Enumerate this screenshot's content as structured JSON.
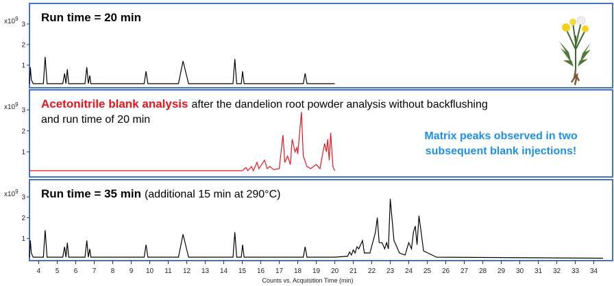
{
  "chart_data": [
    {
      "type": "line",
      "title": "Run time = 20 min",
      "title_color": "#000000",
      "color": "#000000",
      "y_multiplier": "x10",
      "y_exponent": "9",
      "xlim": [
        3.5,
        34.5
      ],
      "ylim": [
        0,
        3.3
      ],
      "yticks": [
        1,
        2,
        3
      ],
      "x": [
        3.5,
        3.55,
        3.6,
        3.7,
        4.25,
        4.35,
        4.45,
        5.3,
        5.4,
        5.47,
        5.55,
        5.62,
        5.7,
        6.5,
        6.6,
        6.68,
        6.76,
        6.82,
        6.9,
        9.7,
        9.8,
        9.9,
        11.55,
        11.8,
        12.1,
        14.5,
        14.6,
        14.7,
        14.95,
        15.02,
        15.1,
        18.3,
        18.4,
        18.5,
        20.0
      ],
      "values": [
        0.1,
        0.9,
        0.3,
        0.1,
        0.1,
        1.4,
        0.1,
        0.1,
        0.6,
        0.1,
        0.8,
        0.1,
        0.1,
        0.1,
        0.9,
        0.1,
        0.5,
        0.1,
        0.1,
        0.1,
        0.7,
        0.1,
        0.1,
        1.2,
        0.1,
        0.1,
        1.3,
        0.1,
        0.1,
        0.7,
        0.1,
        0.1,
        0.6,
        0.1,
        0.1
      ]
    },
    {
      "type": "line",
      "title": "Acetonitrile blank analysis",
      "title_color": "#e8141b",
      "color": "#e8141b",
      "subtitle_lines": [
        "after the dandelion root powder analysis without backflushing",
        "and run time of 20 min"
      ],
      "annotation_lines": [
        "Matrix peaks observed in two",
        "subsequent blank injections!"
      ],
      "annotation_color": "#1e90e8",
      "y_multiplier": "x10",
      "y_exponent": "9",
      "xlim": [
        3.5,
        34.5
      ],
      "ylim": [
        0,
        3.3
      ],
      "yticks": [
        1,
        2,
        3
      ],
      "x": [
        3.5,
        15.0,
        15.2,
        15.3,
        15.5,
        15.6,
        15.8,
        15.9,
        16.2,
        16.35,
        16.5,
        16.7,
        17.0,
        17.2,
        17.3,
        17.45,
        17.6,
        17.7,
        17.85,
        17.95,
        18.0,
        18.2,
        18.3,
        18.5,
        18.7,
        19.0,
        19.2,
        19.45,
        19.55,
        19.62,
        19.7,
        19.78,
        19.9,
        20.0
      ],
      "values": [
        0.1,
        0.1,
        0.25,
        0.1,
        0.3,
        0.1,
        0.5,
        0.2,
        0.6,
        0.2,
        0.3,
        0.15,
        0.2,
        1.8,
        0.5,
        0.8,
        0.4,
        1.6,
        1.0,
        1.2,
        0.9,
        2.9,
        0.8,
        0.3,
        0.2,
        0.4,
        0.2,
        1.4,
        1.0,
        1.6,
        0.6,
        1.9,
        0.3,
        0.1
      ]
    },
    {
      "type": "line",
      "title": "Run time = 35 min",
      "title_color": "#000000",
      "color": "#000000",
      "subtitle_lines": [
        "(additional 15 min at 290°C)"
      ],
      "y_multiplier": "x10",
      "y_exponent": "9",
      "xlabel": "Counts vs. Acquisition Time (min)",
      "xlim": [
        3.5,
        34.5
      ],
      "ylim": [
        0,
        3.3
      ],
      "yticks": [
        1,
        2,
        3
      ],
      "xticks": [
        4,
        5,
        6,
        7,
        8,
        9,
        10,
        11,
        12,
        13,
        14,
        15,
        16,
        17,
        18,
        19,
        20,
        21,
        22,
        23,
        24,
        25,
        26,
        27,
        28,
        29,
        30,
        31,
        32,
        33,
        34
      ],
      "x": [
        3.5,
        3.55,
        3.6,
        3.7,
        4.25,
        4.35,
        4.45,
        5.3,
        5.4,
        5.47,
        5.55,
        5.62,
        5.7,
        6.5,
        6.6,
        6.68,
        6.76,
        6.82,
        6.9,
        9.7,
        9.8,
        9.9,
        11.55,
        11.8,
        12.1,
        14.5,
        14.6,
        14.7,
        14.95,
        15.02,
        15.1,
        18.3,
        18.4,
        18.5,
        20.0,
        20.7,
        20.8,
        20.9,
        21.0,
        21.1,
        21.2,
        21.3,
        21.5,
        21.6,
        21.9,
        22.2,
        22.3,
        22.4,
        22.55,
        22.7,
        22.8,
        22.9,
        23.0,
        23.2,
        23.5,
        23.8,
        24.0,
        24.15,
        24.25,
        24.35,
        24.45,
        24.55,
        24.8,
        25.5,
        34.5
      ],
      "values": [
        0.1,
        0.9,
        0.3,
        0.1,
        0.1,
        1.4,
        0.1,
        0.1,
        0.6,
        0.1,
        0.8,
        0.1,
        0.1,
        0.1,
        0.9,
        0.1,
        0.5,
        0.1,
        0.1,
        0.1,
        0.7,
        0.1,
        0.1,
        1.2,
        0.1,
        0.1,
        1.3,
        0.1,
        0.1,
        0.7,
        0.1,
        0.1,
        0.6,
        0.1,
        0.1,
        0.15,
        0.35,
        0.2,
        0.45,
        0.3,
        0.6,
        0.5,
        0.9,
        0.3,
        0.3,
        1.3,
        2.0,
        0.8,
        0.8,
        0.5,
        0.8,
        0.5,
        2.9,
        0.9,
        0.3,
        0.2,
        0.8,
        0.5,
        1.3,
        1.6,
        0.7,
        2.1,
        0.4,
        0.1,
        0.05
      ]
    }
  ]
}
